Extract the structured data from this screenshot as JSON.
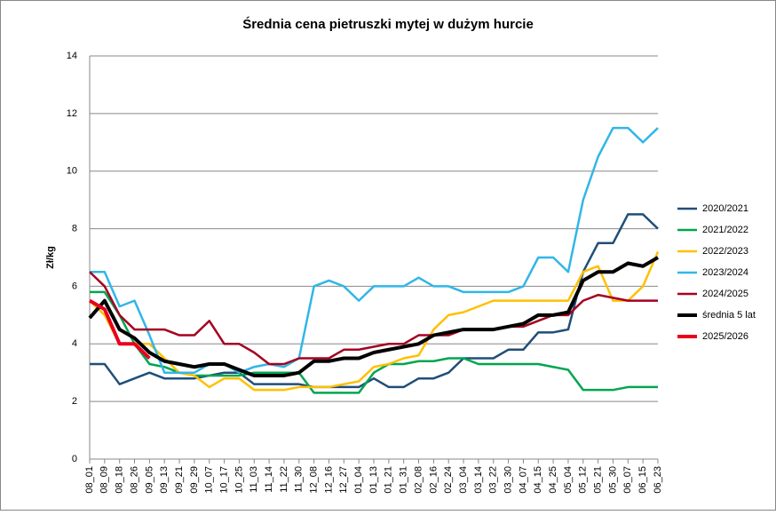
{
  "chart_data": {
    "type": "line",
    "title": "Średnia cena pietruszki mytej w dużym hurcie",
    "y_label": "Zł/kg",
    "categories": [
      "08_01",
      "08_09",
      "08_18",
      "08_26",
      "09_05",
      "09_13",
      "09_21",
      "09_29",
      "10_07",
      "10_17",
      "10_25",
      "11_03",
      "11_14",
      "11_22",
      "11_30",
      "12_08",
      "12_16",
      "12_27",
      "01_04",
      "01_13",
      "01_21",
      "01_31",
      "02_08",
      "02_16",
      "02_24",
      "03_04",
      "03_14",
      "03_22",
      "03_30",
      "04_07",
      "04_15",
      "04_25",
      "05_04",
      "05_12",
      "05_21",
      "05_30",
      "06_07",
      "06_15",
      "06_23"
    ],
    "ylim": [
      0,
      14
    ],
    "yticks": [
      0,
      2,
      4,
      6,
      8,
      10,
      12,
      14
    ],
    "grid": true,
    "legend": "right",
    "series": [
      {
        "name": "2020/2021",
        "color": "#1f4e79",
        "width": 2.5,
        "values": [
          3.3,
          3.3,
          2.6,
          2.8,
          3.0,
          2.8,
          2.8,
          2.8,
          2.9,
          3.0,
          3.0,
          2.6,
          2.6,
          2.6,
          2.6,
          2.5,
          2.5,
          2.5,
          2.5,
          2.8,
          2.5,
          2.5,
          2.8,
          2.8,
          3.0,
          3.5,
          3.5,
          3.5,
          3.8,
          3.8,
          4.4,
          4.4,
          4.5,
          6.5,
          7.5,
          7.5,
          8.5,
          8.5,
          8.0
        ]
      },
      {
        "name": "2021/2022",
        "color": "#00a550",
        "width": 2.5,
        "values": [
          5.8,
          5.8,
          5.0,
          4.0,
          3.3,
          3.2,
          3.0,
          2.9,
          2.9,
          2.9,
          2.9,
          3.0,
          3.0,
          3.0,
          3.0,
          2.3,
          2.3,
          2.3,
          2.3,
          3.0,
          3.3,
          3.3,
          3.4,
          3.4,
          3.5,
          3.5,
          3.3,
          3.3,
          3.3,
          3.3,
          3.3,
          3.2,
          3.1,
          2.4,
          2.4,
          2.4,
          2.5,
          2.5,
          2.5
        ]
      },
      {
        "name": "2022/2023",
        "color": "#ffc000",
        "width": 2.5,
        "values": [
          5.5,
          5.0,
          4.0,
          4.0,
          4.0,
          3.5,
          3.0,
          2.9,
          2.5,
          2.8,
          2.8,
          2.4,
          2.4,
          2.4,
          2.5,
          2.5,
          2.5,
          2.6,
          2.7,
          3.2,
          3.3,
          3.5,
          3.6,
          4.5,
          5.0,
          5.1,
          5.3,
          5.5,
          5.5,
          5.5,
          5.5,
          5.5,
          5.5,
          6.5,
          6.7,
          5.5,
          5.5,
          6.0,
          7.2
        ]
      },
      {
        "name": "2023/2024",
        "color": "#31b6e7",
        "width": 2.5,
        "values": [
          6.5,
          6.5,
          5.3,
          5.5,
          4.3,
          3.0,
          3.0,
          3.0,
          3.3,
          3.3,
          3.0,
          3.2,
          3.3,
          3.2,
          3.5,
          6.0,
          6.2,
          6.0,
          5.5,
          6.0,
          6.0,
          6.0,
          6.3,
          6.0,
          6.0,
          5.8,
          5.8,
          5.8,
          5.8,
          6.0,
          7.0,
          7.0,
          6.5,
          9.0,
          10.5,
          11.5,
          11.5,
          11.0,
          11.5
        ]
      },
      {
        "name": "2024/2025",
        "color": "#a50021",
        "width": 2.5,
        "values": [
          6.5,
          6.0,
          5.0,
          4.5,
          4.5,
          4.5,
          4.3,
          4.3,
          4.8,
          4.0,
          4.0,
          3.7,
          3.3,
          3.3,
          3.5,
          3.5,
          3.5,
          3.8,
          3.8,
          3.9,
          4.0,
          4.0,
          4.3,
          4.3,
          4.3,
          4.5,
          4.5,
          4.5,
          4.6,
          4.6,
          4.8,
          5.0,
          5.0,
          5.5,
          5.7,
          5.6,
          5.5,
          5.5,
          5.5
        ]
      },
      {
        "name": "średnia 5 lat",
        "color": "#000000",
        "width": 4,
        "values": [
          4.9,
          5.5,
          4.5,
          4.2,
          3.7,
          3.4,
          3.3,
          3.2,
          3.3,
          3.3,
          3.1,
          2.9,
          2.9,
          2.9,
          3.0,
          3.4,
          3.4,
          3.5,
          3.5,
          3.7,
          3.8,
          3.9,
          4.0,
          4.3,
          4.4,
          4.5,
          4.5,
          4.5,
          4.6,
          4.7,
          5.0,
          5.0,
          5.1,
          6.2,
          6.5,
          6.5,
          6.8,
          6.7,
          7.0
        ]
      },
      {
        "name": "2025/2026",
        "color": "#e8001c",
        "width": 4,
        "values": [
          5.5,
          5.2,
          4.0,
          4.0,
          3.5,
          null,
          null,
          null,
          null,
          null,
          null,
          null,
          null,
          null,
          null,
          null,
          null,
          null,
          null,
          null,
          null,
          null,
          null,
          null,
          null,
          null,
          null,
          null,
          null,
          null,
          null,
          null,
          null,
          null,
          null,
          null,
          null,
          null,
          null
        ]
      }
    ]
  }
}
